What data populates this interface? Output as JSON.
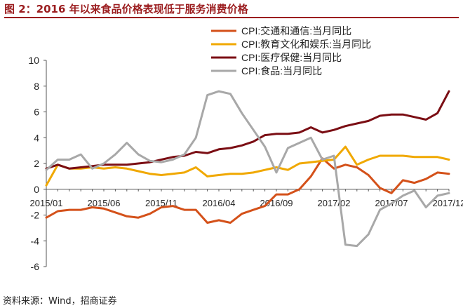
{
  "figure": {
    "title": "图 2：2016 年以来食品价格表现低于服务消费价格",
    "source": "资料来源：Wind，招商证券"
  },
  "chart_data": {
    "type": "line",
    "ylim": [
      -6,
      10
    ],
    "yticks": [
      -6,
      -4,
      -2,
      0,
      2,
      4,
      6,
      8,
      10
    ],
    "x": [
      "2015/01",
      "2015/02",
      "2015/03",
      "2015/04",
      "2015/05",
      "2015/06",
      "2015/07",
      "2015/08",
      "2015/09",
      "2015/10",
      "2015/11",
      "2015/12",
      "2016/01",
      "2016/02",
      "2016/03",
      "2016/04",
      "2016/05",
      "2016/06",
      "2016/07",
      "2016/08",
      "2016/09",
      "2016/10",
      "2016/11",
      "2016/12",
      "2017/01",
      "2017/02",
      "2017/03",
      "2017/04",
      "2017/05",
      "2017/06",
      "2017/07",
      "2017/08",
      "2017/09",
      "2017/10",
      "2017/11",
      "2017/12"
    ],
    "xtick_labels": [
      "2015/01",
      "2015/06",
      "2015/11",
      "2016/04",
      "2016/09",
      "2017/02",
      "2017/07",
      "2017/12"
    ],
    "legend_position": "top-right",
    "grid": false,
    "series": [
      {
        "name": "CPI:交通和通信:当月同比",
        "color": "#d4511a",
        "values": [
          -2.2,
          -1.7,
          -1.6,
          -1.6,
          -1.4,
          -1.5,
          -1.8,
          -2.1,
          -2.2,
          -1.9,
          -1.4,
          -1.3,
          -1.6,
          -1.6,
          -2.6,
          -2.4,
          -2.6,
          -1.9,
          -1.6,
          -1.3,
          -0.4,
          -0.4,
          0.0,
          1.0,
          2.4,
          1.6,
          1.9,
          1.7,
          1.1,
          0.1,
          -0.3,
          0.7,
          0.5,
          0.8,
          1.3,
          1.2
        ]
      },
      {
        "name": "CPI:教育文化和娱乐:当月同比",
        "color": "#f0a800",
        "values": [
          0.3,
          1.9,
          1.6,
          1.6,
          1.7,
          1.6,
          1.7,
          1.6,
          1.4,
          1.2,
          1.1,
          1.2,
          1.3,
          1.7,
          1.0,
          1.1,
          1.2,
          1.2,
          1.3,
          1.5,
          1.7,
          1.5,
          2.0,
          2.1,
          2.2,
          2.3,
          3.3,
          1.9,
          2.3,
          2.6,
          2.6,
          2.6,
          2.5,
          2.5,
          2.5,
          2.3
        ]
      },
      {
        "name": "CPI:医疗保健:当月同比",
        "color": "#7b0e14",
        "values": [
          1.6,
          1.9,
          1.6,
          1.7,
          1.8,
          1.9,
          1.9,
          1.9,
          2.0,
          2.1,
          2.3,
          2.5,
          2.6,
          2.9,
          2.8,
          3.1,
          3.2,
          3.4,
          3.7,
          4.2,
          4.3,
          4.3,
          4.4,
          4.8,
          4.4,
          4.6,
          4.9,
          5.1,
          5.3,
          5.7,
          5.8,
          5.8,
          5.6,
          5.4,
          5.9,
          7.6
        ]
      },
      {
        "name": "CPI:食品:当月同比",
        "color": "#a8a8a8",
        "values": [
          1.5,
          2.3,
          2.3,
          2.7,
          1.6,
          2.0,
          2.7,
          3.6,
          2.7,
          2.2,
          2.1,
          2.3,
          2.7,
          4.0,
          7.3,
          7.6,
          7.4,
          5.9,
          4.6,
          3.3,
          1.3,
          3.2,
          3.6,
          4.0,
          2.3,
          2.6,
          -4.3,
          -4.4,
          -3.5,
          -1.6,
          -1.1,
          -0.5,
          -0.1,
          -1.4,
          -0.5,
          -0.3
        ]
      }
    ]
  }
}
